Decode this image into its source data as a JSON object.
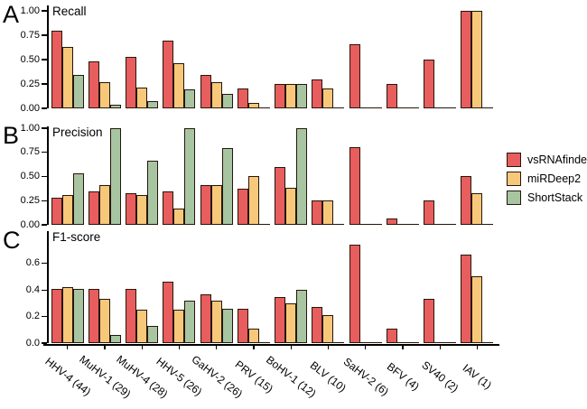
{
  "figure": {
    "background": "#ffffff",
    "text_color": "#000000"
  },
  "chart_data": {
    "type": "bar",
    "grouped": true,
    "orientation": "vertical",
    "grid": false,
    "categories": [
      "HHV-4 (44)",
      "MuHV-1 (29)",
      "MuHV-4 (28)",
      "HHV-5 (26)",
      "GaHV-2 (26)",
      "PRV (15)",
      "BoHV-1 (12)",
      "BLV (10)",
      "SaHV-2 (6)",
      "BFV (4)",
      "SV40 (2)",
      "IAV (1)"
    ],
    "series_names": [
      "vsRNAfinder",
      "miRDeep2",
      "ShortStack"
    ],
    "series_colors": [
      "#e85d5d",
      "#f7c87a",
      "#a8c5a2"
    ],
    "bar_outline": "#26160b",
    "axis_color": "#000000",
    "legend": {
      "position": "right",
      "labels": [
        "vsRNAfinder",
        "miRDeep2",
        "ShortStack"
      ]
    },
    "panels": [
      {
        "letter": "A",
        "title": "Recall",
        "ylim": [
          0,
          1.0
        ],
        "yticks": [
          1.0,
          0.75,
          0.5,
          0.25,
          0.0
        ],
        "ytick_labels": [
          "1.00",
          "0.75",
          "0.50",
          "0.25",
          "0.00"
        ],
        "series": [
          {
            "name": "vsRNAfinder",
            "values": [
              0.8,
              0.48,
              0.53,
              0.69,
              0.34,
              0.2,
              0.25,
              0.3,
              0.66,
              0.25,
              0.5,
              1.0
            ]
          },
          {
            "name": "miRDeep2",
            "values": [
              0.63,
              0.27,
              0.21,
              0.46,
              0.27,
              0.06,
              0.25,
              0.2,
              0.0,
              0.0,
              0.0,
              1.0
            ]
          },
          {
            "name": "ShortStack",
            "values": [
              0.34,
              0.04,
              0.07,
              0.19,
              0.15,
              0.0,
              0.25,
              0.0,
              0.0,
              0.0,
              0.0,
              0.0
            ]
          }
        ]
      },
      {
        "letter": "B",
        "title": "Precision",
        "ylim": [
          0,
          1.0
        ],
        "yticks": [
          1.0,
          0.75,
          0.5,
          0.25,
          0.0
        ],
        "ytick_labels": [
          "1.00",
          "0.75",
          "0.50",
          "0.25",
          "0.00"
        ],
        "series": [
          {
            "name": "vsRNAfinder",
            "values": [
              0.28,
              0.35,
              0.33,
              0.35,
              0.41,
              0.37,
              0.6,
              0.25,
              0.8,
              0.07,
              0.25,
              0.5
            ]
          },
          {
            "name": "miRDeep2",
            "values": [
              0.31,
              0.41,
              0.31,
              0.17,
              0.41,
              0.5,
              0.38,
              0.25,
              0.0,
              0.0,
              0.0,
              0.33
            ]
          },
          {
            "name": "ShortStack",
            "values": [
              0.53,
              1.0,
              0.66,
              1.0,
              0.79,
              0.0,
              1.0,
              0.0,
              0.0,
              0.0,
              0.0,
              0.0
            ]
          }
        ]
      },
      {
        "letter": "C",
        "title": "F1-score",
        "ylim": [
          0,
          0.8
        ],
        "yticks": [
          0.6,
          0.4,
          0.2,
          0.0
        ],
        "ytick_labels": [
          "0.6",
          "0.4",
          "0.2",
          "0.0"
        ],
        "series": [
          {
            "name": "vsRNAfinder",
            "values": [
              0.41,
              0.41,
              0.41,
              0.46,
              0.37,
              0.26,
              0.35,
              0.27,
              0.74,
              0.11,
              0.33,
              0.67
            ]
          },
          {
            "name": "miRDeep2",
            "values": [
              0.42,
              0.33,
              0.25,
              0.25,
              0.32,
              0.11,
              0.3,
              0.21,
              0.0,
              0.0,
              0.0,
              0.5
            ]
          },
          {
            "name": "ShortStack",
            "values": [
              0.41,
              0.06,
              0.13,
              0.32,
              0.26,
              0.0,
              0.4,
              0.0,
              0.0,
              0.0,
              0.0,
              0.0
            ]
          }
        ]
      }
    ]
  }
}
